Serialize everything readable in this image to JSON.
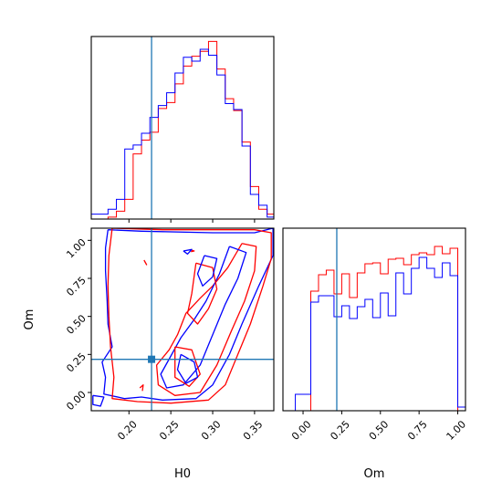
{
  "chart_data": {
    "type": "corner",
    "parameters": [
      "H0",
      "Om"
    ],
    "truth": {
      "H0": 0.227,
      "Om": 0.218,
      "color": "#1f77b4"
    },
    "colors": {
      "red_chain": "#ff0000",
      "blue_chain": "#0000ff",
      "truth": "#1f77b4"
    },
    "panels": [
      {
        "id": "H0-marginal",
        "type": "step-histogram",
        "xlim": [
          0.155,
          0.373
        ],
        "xticks": [
          0.2,
          0.25,
          0.3,
          0.35
        ],
        "xtick_labels": [],
        "bin_edges": [
          0.155,
          0.165,
          0.175,
          0.185,
          0.195,
          0.205,
          0.215,
          0.225,
          0.235,
          0.245,
          0.255,
          0.265,
          0.275,
          0.285,
          0.295,
          0.305,
          0.315,
          0.325,
          0.335,
          0.345,
          0.355,
          0.365,
          0.373
        ],
        "ylim": [
          0,
          185
        ],
        "series": [
          {
            "color": "#ff0000",
            "values": [
              0,
              0,
              2,
              8,
              20,
              66,
              80,
              88,
              112,
              118,
              137,
              155,
              165,
              170,
              180,
              152,
              122,
              110,
              78,
              33,
              10,
              5
            ]
          },
          {
            "color": "#0000ff",
            "values": [
              5,
              5,
              10,
              20,
              71,
              75,
              87,
              103,
              115,
              128,
              148,
              164,
              160,
              172,
              166,
              146,
              117,
              111,
              74,
              25,
              14,
              2
            ]
          }
        ]
      },
      {
        "id": "Om-marginal",
        "type": "step-histogram",
        "xlim": [
          -0.13,
          1.05
        ],
        "xticks": [
          0.0,
          0.25,
          0.5,
          0.75,
          1.0
        ],
        "xtick_labels": [
          "0.00",
          "0.25",
          "0.50",
          "0.75",
          "1.00"
        ],
        "xlabel": "Om",
        "bin_edges": [
          -0.05,
          0.0,
          0.05,
          0.1,
          0.15,
          0.2,
          0.25,
          0.3,
          0.35,
          0.4,
          0.45,
          0.5,
          0.55,
          0.6,
          0.65,
          0.7,
          0.75,
          0.8,
          0.85,
          0.9,
          0.95,
          1.0,
          1.05
        ],
        "ylim": [
          0,
          200
        ],
        "series": [
          {
            "color": "#ff0000",
            "values": [
              0,
              0,
              131,
              149,
              154,
              128,
              150,
              124,
              151,
              161,
              162,
              150,
              166,
              167,
              160,
              171,
              173,
              171,
              180,
              172,
              178,
              0
            ]
          },
          {
            "color": "#0000ff",
            "values": [
              18,
              18,
              119,
              126,
              126,
              103,
              115,
              101,
              114,
              122,
              102,
              129,
              104,
              151,
              128,
              156,
              168,
              156,
              146,
              162,
              148,
              4
            ]
          }
        ]
      },
      {
        "id": "H0-Om-joint",
        "type": "contour",
        "xlim": [
          0.155,
          0.373
        ],
        "ylim": [
          -0.12,
          1.08
        ],
        "xticks": [
          0.2,
          0.25,
          0.3,
          0.35
        ],
        "xtick_labels": [
          "0.20",
          "0.25",
          "0.30",
          "0.35"
        ],
        "yticks": [
          0.0,
          0.25,
          0.5,
          0.75,
          1.0
        ],
        "ytick_labels": [
          "0.00",
          "0.25",
          "0.50",
          "0.75",
          "1.00"
        ],
        "xlabel": "H0",
        "ylabel": "Om",
        "contours": [
          {
            "color": "#0000ff",
            "points": [
              [
                0.175,
                1.07
              ],
              [
                0.215,
                1.06
              ],
              [
                0.3,
                1.05
              ],
              [
                0.35,
                1.05
              ],
              [
                0.372,
                1.08
              ],
              [
                0.372,
                0.9
              ],
              [
                0.355,
                0.7
              ],
              [
                0.335,
                0.45
              ],
              [
                0.32,
                0.25
              ],
              [
                0.3,
                0.05
              ],
              [
                0.28,
                -0.04
              ],
              [
                0.24,
                -0.05
              ],
              [
                0.215,
                -0.03
              ],
              [
                0.195,
                -0.04
              ],
              [
                0.17,
                -0.01
              ],
              [
                0.172,
                0.1
              ],
              [
                0.168,
                0.2
              ],
              [
                0.18,
                0.3
              ],
              [
                0.175,
                0.45
              ],
              [
                0.174,
                0.6
              ],
              [
                0.172,
                0.8
              ],
              [
                0.172,
                0.95
              ],
              [
                0.175,
                1.07
              ]
            ]
          },
          {
            "color": "#ff0000",
            "points": [
              [
                0.18,
                1.08
              ],
              [
                0.24,
                1.07
              ],
              [
                0.3,
                1.07
              ],
              [
                0.35,
                1.07
              ],
              [
                0.37,
                1.05
              ],
              [
                0.37,
                0.88
              ],
              [
                0.36,
                0.7
              ],
              [
                0.345,
                0.45
              ],
              [
                0.33,
                0.25
              ],
              [
                0.315,
                0.05
              ],
              [
                0.295,
                -0.05
              ],
              [
                0.25,
                -0.07
              ],
              [
                0.21,
                -0.06
              ],
              [
                0.18,
                -0.04
              ],
              [
                0.182,
                0.1
              ],
              [
                0.178,
                0.3
              ],
              [
                0.176,
                0.5
              ],
              [
                0.175,
                0.7
              ],
              [
                0.176,
                0.9
              ],
              [
                0.18,
                1.08
              ]
            ]
          },
          {
            "color": "#ff0000",
            "points": [
              [
                0.335,
                0.98
              ],
              [
                0.352,
                0.96
              ],
              [
                0.35,
                0.8
              ],
              [
                0.338,
                0.6
              ],
              [
                0.322,
                0.4
              ],
              [
                0.305,
                0.18
              ],
              [
                0.285,
                0.0
              ],
              [
                0.255,
                -0.02
              ],
              [
                0.235,
                0.05
              ],
              [
                0.233,
                0.18
              ],
              [
                0.248,
                0.28
              ],
              [
                0.258,
                0.38
              ],
              [
                0.268,
                0.52
              ],
              [
                0.285,
                0.62
              ],
              [
                0.3,
                0.7
              ],
              [
                0.318,
                0.82
              ],
              [
                0.335,
                0.98
              ]
            ]
          },
          {
            "color": "#0000ff",
            "points": [
              [
                0.32,
                0.96
              ],
              [
                0.34,
                0.92
              ],
              [
                0.33,
                0.75
              ],
              [
                0.315,
                0.58
              ],
              [
                0.3,
                0.38
              ],
              [
                0.285,
                0.18
              ],
              [
                0.265,
                0.05
              ],
              [
                0.245,
                0.03
              ],
              [
                0.238,
                0.12
              ],
              [
                0.25,
                0.24
              ],
              [
                0.262,
                0.36
              ],
              [
                0.278,
                0.48
              ],
              [
                0.292,
                0.6
              ],
              [
                0.308,
                0.78
              ],
              [
                0.32,
                0.96
              ]
            ]
          },
          {
            "color": "#ff0000",
            "points": [
              [
                0.28,
                0.85
              ],
              [
                0.3,
                0.82
              ],
              [
                0.305,
                0.68
              ],
              [
                0.295,
                0.55
              ],
              [
                0.282,
                0.45
              ],
              [
                0.27,
                0.52
              ],
              [
                0.275,
                0.65
              ],
              [
                0.28,
                0.85
              ]
            ]
          },
          {
            "color": "#0000ff",
            "points": [
              [
                0.29,
                0.9
              ],
              [
                0.305,
                0.88
              ],
              [
                0.3,
                0.76
              ],
              [
                0.288,
                0.7
              ],
              [
                0.282,
                0.78
              ],
              [
                0.29,
                0.9
              ]
            ]
          },
          {
            "color": "#ff0000",
            "points": [
              [
                0.255,
                0.3
              ],
              [
                0.275,
                0.28
              ],
              [
                0.285,
                0.12
              ],
              [
                0.272,
                0.04
              ],
              [
                0.255,
                0.1
              ],
              [
                0.255,
                0.3
              ]
            ]
          },
          {
            "color": "#0000ff",
            "points": [
              [
                0.262,
                0.25
              ],
              [
                0.278,
                0.2
              ],
              [
                0.282,
                0.1
              ],
              [
                0.268,
                0.06
              ],
              [
                0.258,
                0.15
              ],
              [
                0.262,
                0.25
              ]
            ]
          },
          {
            "color": "#0000ff",
            "points": [
              [
                0.265,
                0.93
              ],
              [
                0.275,
                0.94
              ],
              [
                0.27,
                0.91
              ],
              [
                0.265,
                0.93
              ]
            ]
          },
          {
            "color": "#ff0000",
            "points": [
              [
                0.275,
                0.935
              ],
              [
                0.278,
                0.93
              ],
              [
                0.274,
                0.925
              ]
            ]
          },
          {
            "color": "#ff0000",
            "points": [
              [
                0.218,
                0.87
              ],
              [
                0.221,
                0.84
              ],
              [
                0.219,
                0.86
              ]
            ]
          },
          {
            "color": "#0000ff",
            "points": [
              [
                0.157,
                -0.02
              ],
              [
                0.17,
                -0.03
              ],
              [
                0.166,
                -0.09
              ],
              [
                0.157,
                -0.08
              ],
              [
                0.157,
                -0.02
              ]
            ]
          },
          {
            "color": "#ff0000",
            "points": [
              [
                0.213,
                0.03
              ],
              [
                0.217,
                0.05
              ],
              [
                0.216,
                0.01
              ]
            ]
          }
        ]
      }
    ]
  }
}
